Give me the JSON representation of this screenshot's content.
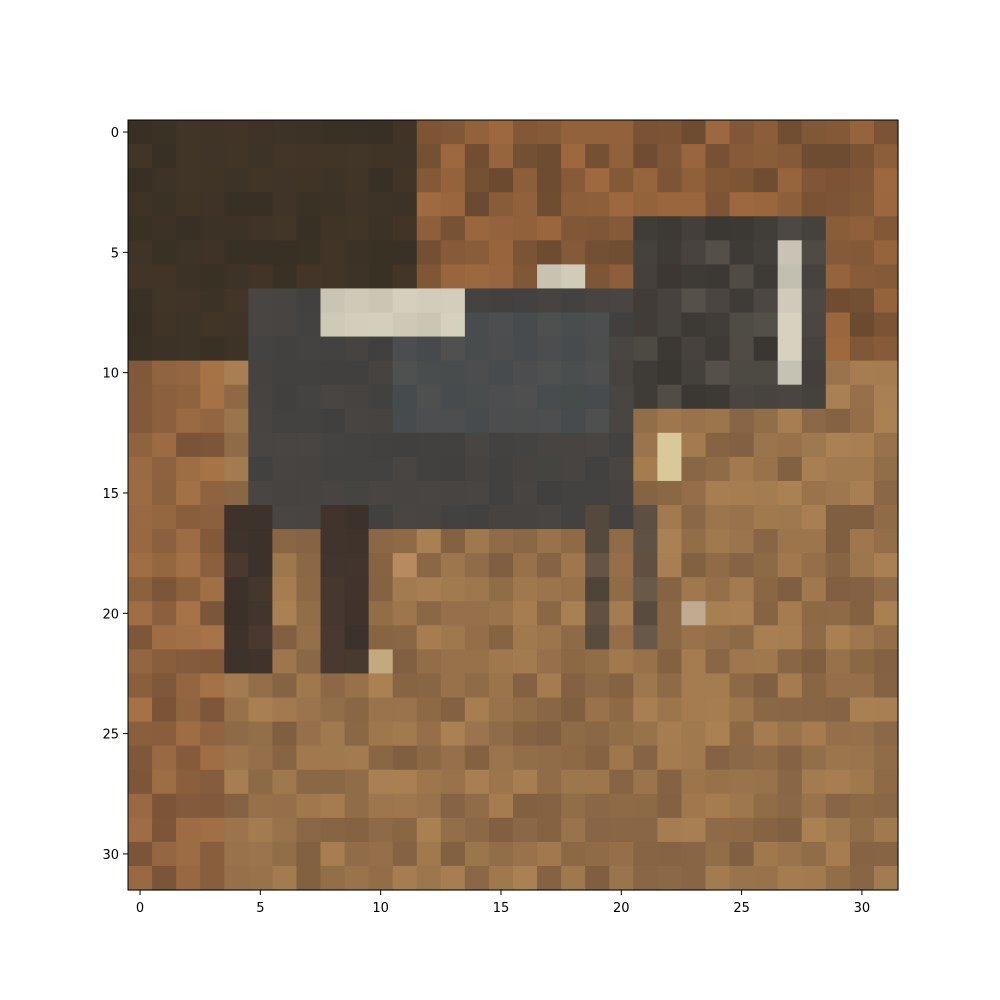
{
  "figure": {
    "image_description": "low-resolution 32x32 pixelated photograph of a dark horse standing on brown dirt ground",
    "grid_size": [
      32,
      32
    ],
    "x_ticks": [
      "0",
      "5",
      "10",
      "15",
      "20",
      "25",
      "30"
    ],
    "y_ticks": [
      "0",
      "5",
      "10",
      "15",
      "20",
      "25",
      "30"
    ],
    "palette": {
      "horse_body": "#41403f",
      "horse_highlight": "#d8d2c0",
      "dark_background": "#2e2a22",
      "ground_brown": "#9a7048",
      "ground_light": "#b58a58",
      "ground_dark": "#6e5038",
      "axis_color": "#000000"
    }
  }
}
